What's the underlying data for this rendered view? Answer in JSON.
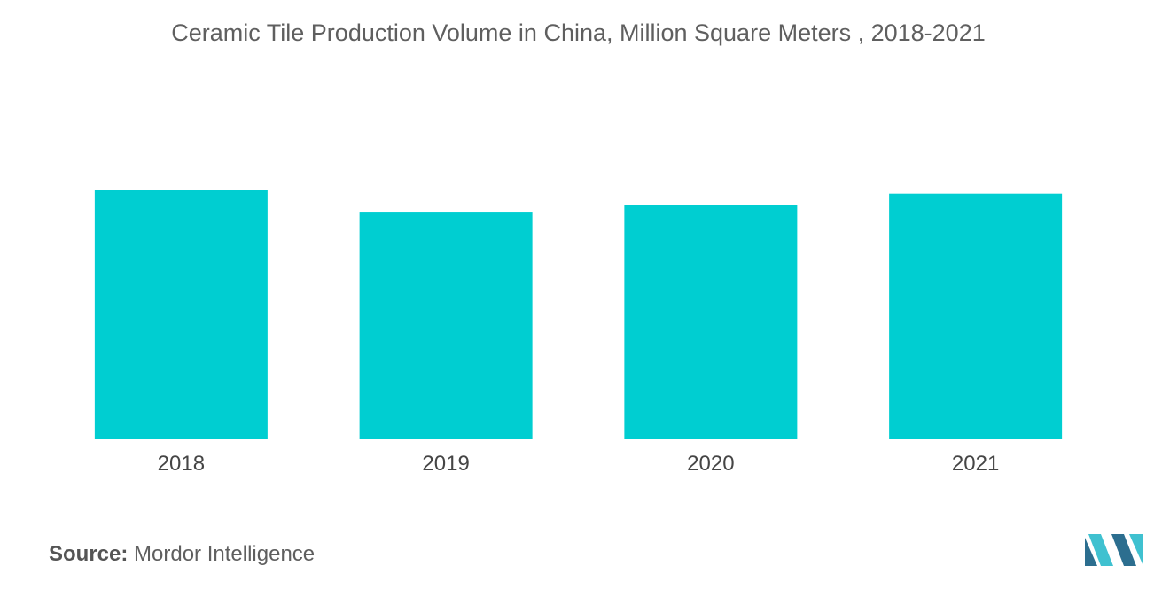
{
  "colors": {
    "bar": "#00CED1",
    "title": "#5f5f5f",
    "logo_dark": "#2C6E8F",
    "logo_light": "#3FC1D0"
  },
  "source": {
    "label": "Source:",
    "value": "Mordor Intelligence"
  },
  "logo": {
    "icon": "mordor-intelligence-logo",
    "text": "MI"
  },
  "chart_data": {
    "type": "bar",
    "title": "Ceramic Tile Production Volume in China, Million Square Meters , 2018-2021",
    "xlabel": "",
    "ylabel": "",
    "categories": [
      "2018",
      "2019",
      "2020",
      "2021"
    ],
    "values": [
      9.0,
      8.2,
      8.45,
      8.85
    ],
    "ylim": [
      0,
      12
    ],
    "grid": false,
    "legend": "none",
    "data_labels": false
  }
}
